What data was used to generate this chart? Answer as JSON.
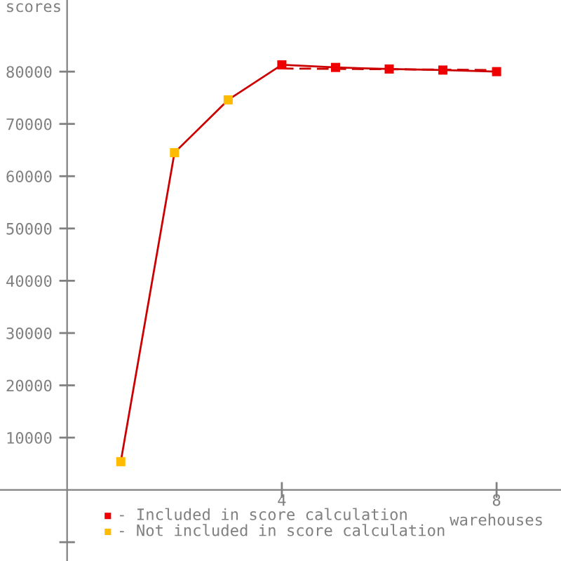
{
  "chart_data": {
    "type": "line",
    "xlabel": "warehouses",
    "ylabel": "scores",
    "x": [
      1,
      2,
      3,
      4,
      5,
      6,
      7,
      8
    ],
    "series": [
      {
        "color": "#cc0000",
        "marker": "none",
        "values": [
          5400,
          64500,
          74600,
          81300,
          80800,
          80500,
          80300,
          80000
        ]
      },
      {
        "type": "line",
        "color": "#cc0000",
        "marker": "none",
        "line_style": "dashed",
        "x": [
          4,
          8
        ],
        "values": [
          80600,
          80300
        ]
      },
      {
        "type": "scatter",
        "name": "- Included in score calculation",
        "color": "#ee0000",
        "marker": "square",
        "x": [
          4,
          5,
          6,
          7,
          8
        ],
        "values": [
          81300,
          80800,
          80500,
          80300,
          80000
        ]
      },
      {
        "type": "scatter",
        "name": "- Not included in score calculation",
        "color": "#ffbb00",
        "marker": "square",
        "x": [
          1,
          2,
          3
        ],
        "values": [
          5400,
          64500,
          74600
        ]
      }
    ],
    "xlim": [
      -1.25,
      9.2
    ],
    "ylim": [
      -13600,
      93700
    ],
    "xticks": [
      4,
      8
    ],
    "yticks": [
      {
        "value": -10000,
        "label": null
      },
      10000,
      20000,
      30000,
      40000,
      50000,
      60000,
      70000,
      80000
    ],
    "grid": false,
    "legend": "bottom left"
  }
}
